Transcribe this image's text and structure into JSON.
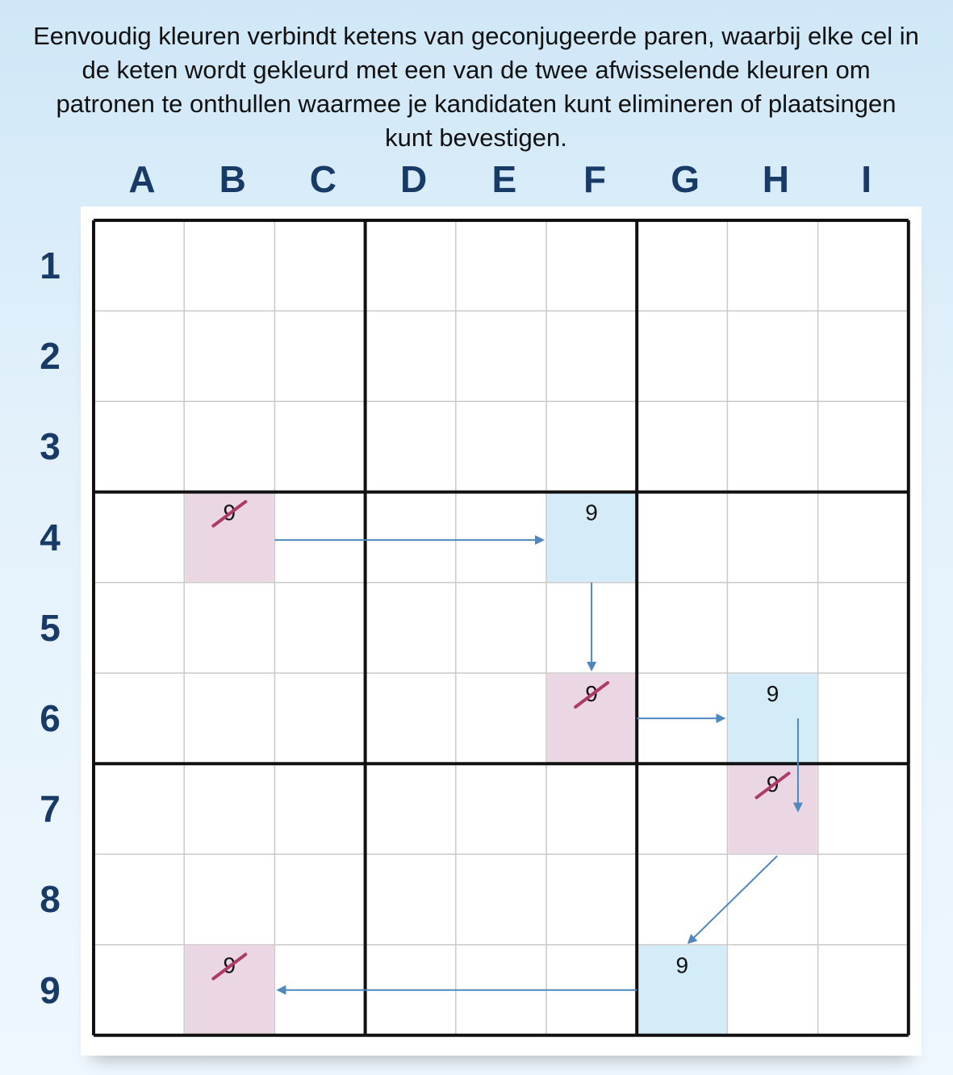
{
  "caption": "Eenvoudig kleuren verbindt ketens van geconjugeerde paren, waarbij elke cel in de keten wordt gekleurd met een van de twee afwisselende kleuren om patronen te onthullen waarmee je kandidaten kunt elimineren of plaatsingen kunt bevestigen.",
  "columns": [
    "A",
    "B",
    "C",
    "D",
    "E",
    "F",
    "G",
    "H",
    "I"
  ],
  "rows": [
    "1",
    "2",
    "3",
    "4",
    "5",
    "6",
    "7",
    "8",
    "9"
  ],
  "colors": {
    "pink": "#ead7e3",
    "blue": "#d3ecf8",
    "arrow": "#4f87bf",
    "strike": "#b03a66",
    "thin_line": "#c9c9c9",
    "thick_line": "#111111"
  },
  "cells": [
    {
      "cell": "B4",
      "col": 1,
      "row": 3,
      "digit": "9",
      "color": "pink",
      "eliminated": true
    },
    {
      "cell": "F4",
      "col": 5,
      "row": 3,
      "digit": "9",
      "color": "blue",
      "eliminated": false
    },
    {
      "cell": "F6",
      "col": 5,
      "row": 5,
      "digit": "9",
      "color": "pink",
      "eliminated": true
    },
    {
      "cell": "H6",
      "col": 7,
      "row": 5,
      "digit": "9",
      "color": "blue",
      "eliminated": false
    },
    {
      "cell": "H7",
      "col": 7,
      "row": 6,
      "digit": "9",
      "color": "pink",
      "eliminated": true
    },
    {
      "cell": "G9",
      "col": 6,
      "row": 8,
      "digit": "9",
      "color": "blue",
      "eliminated": false
    },
    {
      "cell": "B9",
      "col": 1,
      "row": 8,
      "digit": "9",
      "color": "pink",
      "eliminated": true
    }
  ],
  "chain": [
    {
      "from": "B4",
      "to": "F4"
    },
    {
      "from": "F4",
      "to": "F6"
    },
    {
      "from": "F6",
      "to": "H6"
    },
    {
      "from": "H6",
      "to": "H7"
    },
    {
      "from": "H7",
      "to": "G9"
    },
    {
      "from": "G9",
      "to": "B9"
    }
  ]
}
